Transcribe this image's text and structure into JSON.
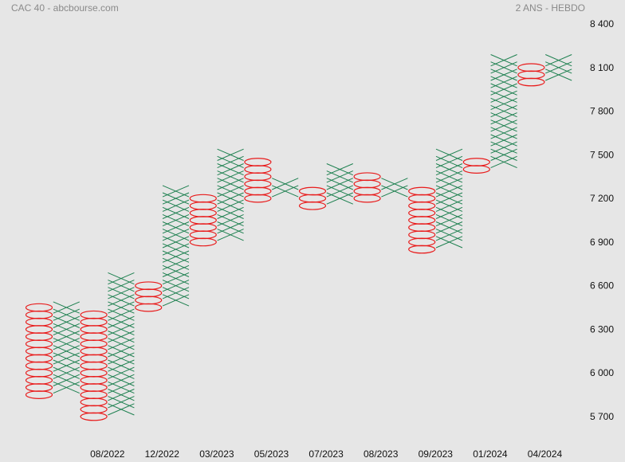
{
  "header": {
    "title_left": "CAC 40 - abcbourse.com",
    "title_right": "2 ANS - HEBDO"
  },
  "colors": {
    "x_mark": "#1e8050",
    "o_mark": "#e81c1c",
    "background": "#e6e6e6",
    "text": "#111111"
  },
  "chart_data": {
    "type": "point-and-figure",
    "box_size": 50,
    "ylim": [
      5600,
      8450
    ],
    "y_ticks": [
      5700,
      6000,
      6300,
      6600,
      6900,
      7200,
      7500,
      7800,
      8100,
      8400
    ],
    "y_tick_labels": [
      "5 700",
      "6 000",
      "6 300",
      "6 600",
      "6 900",
      "7 200",
      "7 500",
      "7 800",
      "8 100",
      "8 400"
    ],
    "x_labels": [
      {
        "column": 2.5,
        "label": "08/2022"
      },
      {
        "column": 4.5,
        "label": "12/2022"
      },
      {
        "column": 6.5,
        "label": "03/2023"
      },
      {
        "column": 8.5,
        "label": "05/2023"
      },
      {
        "column": 10.5,
        "label": "07/2023"
      },
      {
        "column": 12.5,
        "label": "08/2023"
      },
      {
        "column": 14.5,
        "label": "09/2023"
      },
      {
        "column": 16.5,
        "label": "01/2024"
      },
      {
        "column": 18.5,
        "label": "04/2024"
      }
    ],
    "columns": [
      {
        "type": "O",
        "low": 5850,
        "high": 6450
      },
      {
        "type": "X",
        "low": 5900,
        "high": 6450
      },
      {
        "type": "O",
        "low": 5700,
        "high": 6400
      },
      {
        "type": "X",
        "low": 5750,
        "high": 6650
      },
      {
        "type": "O",
        "low": 6450,
        "high": 6600
      },
      {
        "type": "X",
        "low": 6500,
        "high": 7250
      },
      {
        "type": "O",
        "low": 6900,
        "high": 7200
      },
      {
        "type": "X",
        "low": 6950,
        "high": 7500
      },
      {
        "type": "O",
        "low": 7200,
        "high": 7450
      },
      {
        "type": "X",
        "low": 7250,
        "high": 7300
      },
      {
        "type": "O",
        "low": 7150,
        "high": 7250
      },
      {
        "type": "X",
        "low": 7200,
        "high": 7400
      },
      {
        "type": "O",
        "low": 7200,
        "high": 7350
      },
      {
        "type": "X",
        "low": 7250,
        "high": 7300
      },
      {
        "type": "O",
        "low": 6850,
        "high": 7250
      },
      {
        "type": "X",
        "low": 6900,
        "high": 7500
      },
      {
        "type": "O",
        "low": 7400,
        "high": 7450
      },
      {
        "type": "X",
        "low": 7450,
        "high": 8150
      },
      {
        "type": "O",
        "low": 8000,
        "high": 8100
      },
      {
        "type": "X",
        "low": 8050,
        "high": 8150
      }
    ]
  }
}
